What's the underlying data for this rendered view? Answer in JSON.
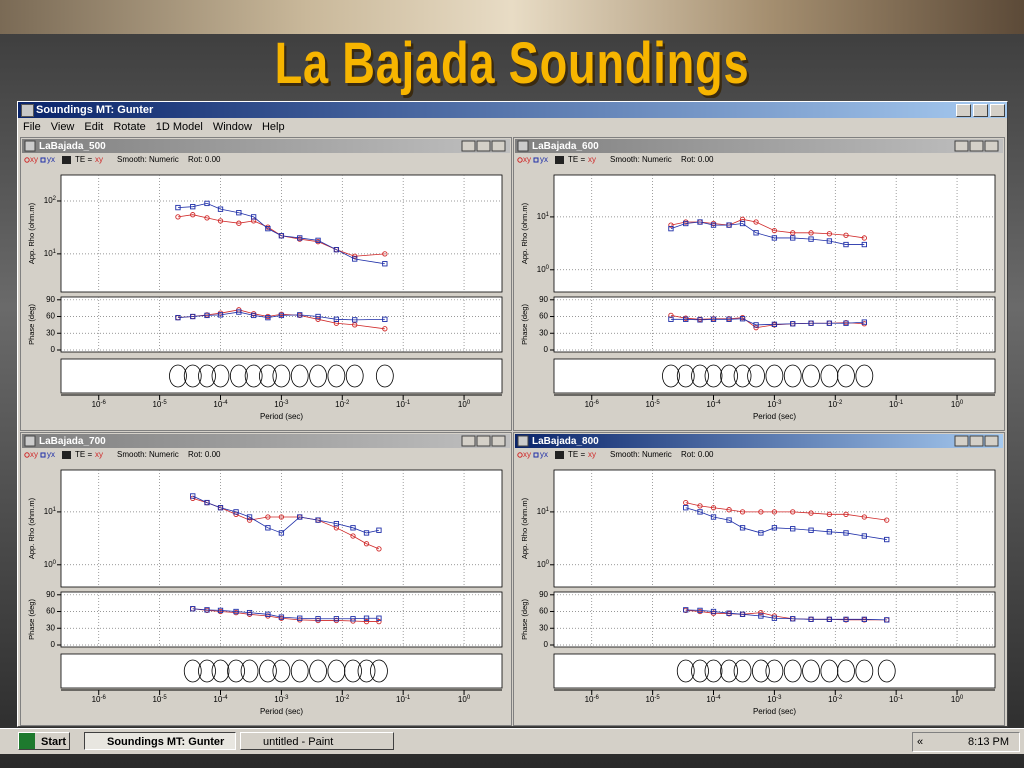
{
  "slide_title": "La Bajada Soundings",
  "window": {
    "title": "Soundings  MT: Gunter",
    "menu": [
      "File",
      "View",
      "Edit",
      "Rotate",
      "1D Model",
      "Window",
      "Help"
    ]
  },
  "taskbar": {
    "start": "Start",
    "tasks": [
      "Soundings  MT: Gunter",
      "untitled - Paint"
    ],
    "chevron": "«",
    "clock": "8:13 PM"
  },
  "panels": [
    {
      "title": "LaBajada_500",
      "active": false,
      "legend": {
        "te_label": "TE =",
        "te_value": "xy",
        "smooth": "Smooth: Numeric",
        "rot": "Rot: 0.00"
      },
      "x_label": "Period (sec)",
      "xscale": "log",
      "xlim": [
        2.4e-07,
        4.2
      ],
      "xticks": [
        {
          "value": 1e-06,
          "label": "10",
          "exponent": "-6"
        },
        {
          "value": 1e-05,
          "label": "10",
          "exponent": "-5"
        },
        {
          "value": 0.0001,
          "label": "10",
          "exponent": "-4"
        },
        {
          "value": 0.001,
          "label": "10",
          "exponent": "-3"
        },
        {
          "value": 0.01,
          "label": "10",
          "exponent": "-2"
        },
        {
          "value": 0.1,
          "label": "10",
          "exponent": "-1"
        },
        {
          "value": 1,
          "label": "10",
          "exponent": "0"
        }
      ],
      "x": [
        2e-05,
        3.5e-05,
        6e-05,
        0.0001,
        0.0002,
        0.00035,
        0.0006,
        0.001,
        0.002,
        0.004,
        0.008,
        0.016,
        0.05
      ],
      "rho": {
        "type": "scatter",
        "y_label": "App. Rho (ohm.m)",
        "yscale": "log",
        "ylim": [
          1.9,
          310
        ],
        "yticks": [
          {
            "value": 10,
            "label": "10",
            "exponent": "1"
          },
          {
            "value": 100,
            "label": "10",
            "exponent": "2"
          }
        ],
        "series": [
          {
            "name": "xy",
            "color": "#d02828",
            "marker": "circle",
            "values": [
              50,
              55,
              48,
              42,
              38,
              42,
              32,
              22,
              19,
              17,
              12,
              9,
              10
            ]
          },
          {
            "name": "yx",
            "color": "#1e2ea8",
            "marker": "square",
            "values": [
              75,
              78,
              90,
              70,
              60,
              50,
              30,
              22,
              20,
              18,
              12,
              8,
              6.5
            ]
          }
        ]
      },
      "phase": {
        "type": "scatter",
        "y_label": "Phase (deg)",
        "ylim": [
          -3.6,
          95
        ],
        "yticks": [
          0,
          30,
          60,
          90
        ],
        "series": [
          {
            "color": "#d02828",
            "marker": "circle",
            "values": [
              58,
              60,
              63,
              66,
              72,
              65,
              60,
              64,
              62,
              55,
              48,
              45,
              38
            ]
          },
          {
            "color": "#1e2ea8",
            "marker": "square",
            "values": [
              58,
              60,
              62,
              63,
              68,
              62,
              58,
              62,
              63,
              60,
              55,
              54,
              55
            ]
          }
        ]
      }
    },
    {
      "title": "LaBajada_600",
      "active": false,
      "legend": {
        "te_label": "TE =",
        "te_value": "xy",
        "smooth": "Smooth: Numeric",
        "rot": "Rot: 0.00"
      },
      "x_label": "Period (sec)",
      "xscale": "log",
      "xlim": [
        2.4e-07,
        4.2
      ],
      "xticks": [
        {
          "value": 1e-06,
          "label": "10",
          "exponent": "-6"
        },
        {
          "value": 1e-05,
          "label": "10",
          "exponent": "-5"
        },
        {
          "value": 0.0001,
          "label": "10",
          "exponent": "-4"
        },
        {
          "value": 0.001,
          "label": "10",
          "exponent": "-3"
        },
        {
          "value": 0.01,
          "label": "10",
          "exponent": "-2"
        },
        {
          "value": 0.1,
          "label": "10",
          "exponent": "-1"
        },
        {
          "value": 1,
          "label": "10",
          "exponent": "0"
        }
      ],
      "x": [
        2e-05,
        3.5e-05,
        6e-05,
        0.0001,
        0.00018,
        0.0003,
        0.0005,
        0.001,
        0.002,
        0.004,
        0.008,
        0.015,
        0.03
      ],
      "rho": {
        "type": "scatter",
        "y_label": "App. Rho (ohm.m)",
        "yscale": "log",
        "ylim": [
          0.38,
          62
        ],
        "yticks": [
          {
            "value": 1,
            "label": "10",
            "exponent": "0"
          },
          {
            "value": 10,
            "label": "10",
            "exponent": "1"
          }
        ],
        "series": [
          {
            "name": "xy",
            "color": "#d02828",
            "marker": "circle",
            "values": [
              7,
              8,
              8,
              7.5,
              7,
              9,
              8,
              5.5,
              5,
              5,
              4.8,
              4.5,
              4
            ]
          },
          {
            "name": "yx",
            "color": "#1e2ea8",
            "marker": "square",
            "values": [
              6,
              7.5,
              8,
              7,
              7,
              7.5,
              5,
              4,
              4,
              3.8,
              3.5,
              3,
              3
            ]
          }
        ]
      },
      "phase": {
        "type": "scatter",
        "y_label": "Phase (deg)",
        "ylim": [
          -3.6,
          95
        ],
        "yticks": [
          0,
          30,
          60,
          90
        ],
        "series": [
          {
            "color": "#d02828",
            "marker": "circle",
            "values": [
              62,
              57,
              55,
              56,
              56,
              58,
              40,
              45,
              47,
              48,
              48,
              49,
              47
            ]
          },
          {
            "color": "#1e2ea8",
            "marker": "square",
            "values": [
              55,
              55,
              54,
              55,
              55,
              56,
              45,
              46,
              47,
              48,
              48,
              48,
              50
            ]
          }
        ]
      }
    },
    {
      "title": "LaBajada_700",
      "active": false,
      "legend": {
        "te_label": "TE =",
        "te_value": "xy",
        "smooth": "Smooth: Numeric",
        "rot": "Rot: 0.00"
      },
      "x_label": "Period (sec)",
      "xscale": "log",
      "xlim": [
        2.4e-07,
        4.2
      ],
      "xticks": [
        {
          "value": 1e-06,
          "label": "10",
          "exponent": "-6"
        },
        {
          "value": 1e-05,
          "label": "10",
          "exponent": "-5"
        },
        {
          "value": 0.0001,
          "label": "10",
          "exponent": "-4"
        },
        {
          "value": 0.001,
          "label": "10",
          "exponent": "-3"
        },
        {
          "value": 0.01,
          "label": "10",
          "exponent": "-2"
        },
        {
          "value": 0.1,
          "label": "10",
          "exponent": "-1"
        },
        {
          "value": 1,
          "label": "10",
          "exponent": "0"
        }
      ],
      "x": [
        3.5e-05,
        6e-05,
        0.0001,
        0.00018,
        0.0003,
        0.0006,
        0.001,
        0.002,
        0.004,
        0.008,
        0.015,
        0.025,
        0.04
      ],
      "rho": {
        "type": "scatter",
        "y_label": "App. Rho (ohm.m)",
        "yscale": "log",
        "ylim": [
          0.38,
          62
        ],
        "yticks": [
          {
            "value": 1,
            "label": "10",
            "exponent": "0"
          },
          {
            "value": 10,
            "label": "10",
            "exponent": "1"
          }
        ],
        "series": [
          {
            "name": "xy",
            "color": "#d02828",
            "marker": "circle",
            "values": [
              18,
              15,
              12,
              9,
              7,
              8,
              8,
              8,
              7,
              5,
              3.5,
              2.5,
              2
            ]
          },
          {
            "name": "yx",
            "color": "#1e2ea8",
            "marker": "square",
            "values": [
              20,
              15,
              12,
              10,
              8,
              5,
              4,
              8,
              7,
              6,
              5,
              4,
              4.5
            ]
          }
        ]
      },
      "phase": {
        "type": "scatter",
        "y_label": "Phase (deg)",
        "ylim": [
          -3.6,
          95
        ],
        "yticks": [
          0,
          30,
          60,
          90
        ],
        "series": [
          {
            "color": "#d02828",
            "marker": "circle",
            "values": [
              65,
              62,
              60,
              58,
              55,
              52,
              48,
              45,
              44,
              44,
              43,
              42,
              42
            ]
          },
          {
            "color": "#1e2ea8",
            "marker": "square",
            "values": [
              65,
              63,
              62,
              60,
              58,
              55,
              50,
              48,
              47,
              47,
              47,
              48,
              48
            ]
          }
        ]
      }
    },
    {
      "title": "LaBajada_800",
      "active": true,
      "legend": {
        "te_label": "TE =",
        "te_value": "xy",
        "smooth": "Smooth: Numeric",
        "rot": "Rot: 0.00"
      },
      "x_label": "Period (sec)",
      "xscale": "log",
      "xlim": [
        2.4e-07,
        4.2
      ],
      "xticks": [
        {
          "value": 1e-06,
          "label": "10",
          "exponent": "-6"
        },
        {
          "value": 1e-05,
          "label": "10",
          "exponent": "-5"
        },
        {
          "value": 0.0001,
          "label": "10",
          "exponent": "-4"
        },
        {
          "value": 0.001,
          "label": "10",
          "exponent": "-3"
        },
        {
          "value": 0.01,
          "label": "10",
          "exponent": "-2"
        },
        {
          "value": 0.1,
          "label": "10",
          "exponent": "-1"
        },
        {
          "value": 1,
          "label": "10",
          "exponent": "0"
        }
      ],
      "x": [
        3.5e-05,
        6e-05,
        0.0001,
        0.00018,
        0.0003,
        0.0006,
        0.001,
        0.002,
        0.004,
        0.008,
        0.015,
        0.03,
        0.07
      ],
      "rho": {
        "type": "scatter",
        "y_label": "App. Rho (ohm.m)",
        "yscale": "log",
        "ylim": [
          0.38,
          62
        ],
        "yticks": [
          {
            "value": 1,
            "label": "10",
            "exponent": "0"
          },
          {
            "value": 10,
            "label": "10",
            "exponent": "1"
          }
        ],
        "series": [
          {
            "name": "xy",
            "color": "#d02828",
            "marker": "circle",
            "values": [
              15,
              13,
              12,
              11,
              10,
              10,
              10,
              10,
              9.5,
              9,
              9,
              8,
              7
            ]
          },
          {
            "name": "yx",
            "color": "#1e2ea8",
            "marker": "square",
            "values": [
              12,
              10,
              8,
              7,
              5,
              4,
              5,
              4.8,
              4.5,
              4.2,
              4,
              3.5,
              3
            ]
          }
        ]
      },
      "phase": {
        "type": "scatter",
        "y_label": "Phase (deg)",
        "ylim": [
          -3.6,
          95
        ],
        "yticks": [
          0,
          30,
          60,
          90
        ],
        "series": [
          {
            "color": "#d02828",
            "marker": "circle",
            "values": [
              62,
              60,
              57,
              56,
              55,
              58,
              52,
              47,
              46,
              46,
              45,
              45,
              45
            ]
          },
          {
            "color": "#1e2ea8",
            "marker": "square",
            "values": [
              63,
              62,
              60,
              57,
              55,
              52,
              48,
              47,
              46,
              46,
              46,
              46,
              45
            ]
          }
        ]
      }
    }
  ]
}
